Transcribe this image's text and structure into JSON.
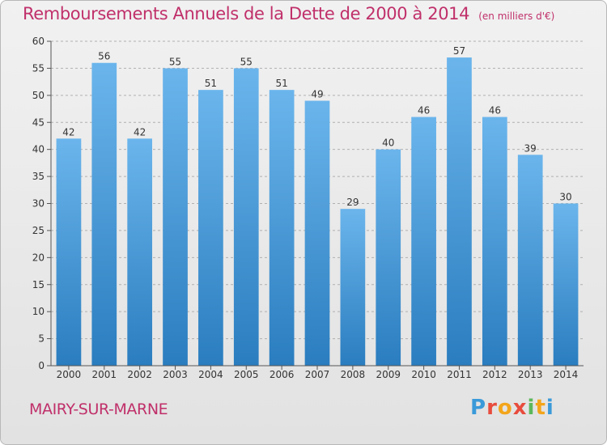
{
  "header": {
    "title": "Remboursements Annuels de la Dette de 2000 à 2014",
    "unit": "(en milliers d'€)"
  },
  "footer": {
    "location": "MAIRY-SUR-MARNE",
    "logo_text": "Proxiti",
    "logo_colors": [
      "#3a9ad9",
      "#e84c3d",
      "#f3a51b",
      "#e84c3d",
      "#5cb85c",
      "#f3a51b",
      "#3a9ad9"
    ]
  },
  "colors": {
    "bar_light": "#6bb5ec",
    "bar_dark": "#2a7dbf",
    "title": "#c0306a",
    "grid": "#b0b0b0"
  },
  "chart_data": {
    "type": "bar",
    "title": "Remboursements Annuels de la Dette de 2000 à 2014",
    "categories": [
      "2000",
      "2001",
      "2002",
      "2003",
      "2004",
      "2005",
      "2006",
      "2007",
      "2008",
      "2009",
      "2010",
      "2011",
      "2012",
      "2013",
      "2014"
    ],
    "values": [
      42,
      56,
      42,
      55,
      51,
      55,
      51,
      49,
      29,
      40,
      46,
      57,
      46,
      39,
      30
    ],
    "ylim": [
      0,
      60
    ],
    "yticks": [
      0,
      5,
      10,
      15,
      20,
      25,
      30,
      35,
      40,
      45,
      50,
      55,
      60
    ],
    "xlabel": "",
    "ylabel": "",
    "grid": true,
    "data_labels": true
  }
}
